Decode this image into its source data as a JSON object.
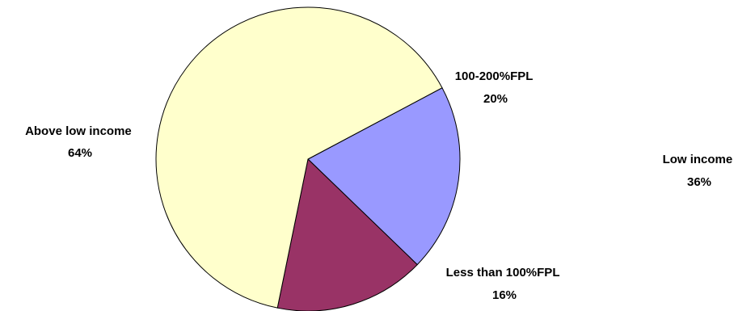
{
  "chart_data": {
    "type": "pie",
    "title": "",
    "slices": [
      {
        "label": "100-200%FPL",
        "value": 20,
        "value_text": "20%",
        "color": "#9999ff"
      },
      {
        "label": "Less than 100%FPL",
        "value": 16,
        "value_text": "16%",
        "color": "#993366"
      },
      {
        "label": "Above low income",
        "value": 64,
        "value_text": "64%",
        "color": "#ffffcc"
      }
    ],
    "annotation": {
      "label": "Low income",
      "value_text": "36%"
    },
    "start_angle_deg": 62,
    "direction": "clockwise"
  }
}
